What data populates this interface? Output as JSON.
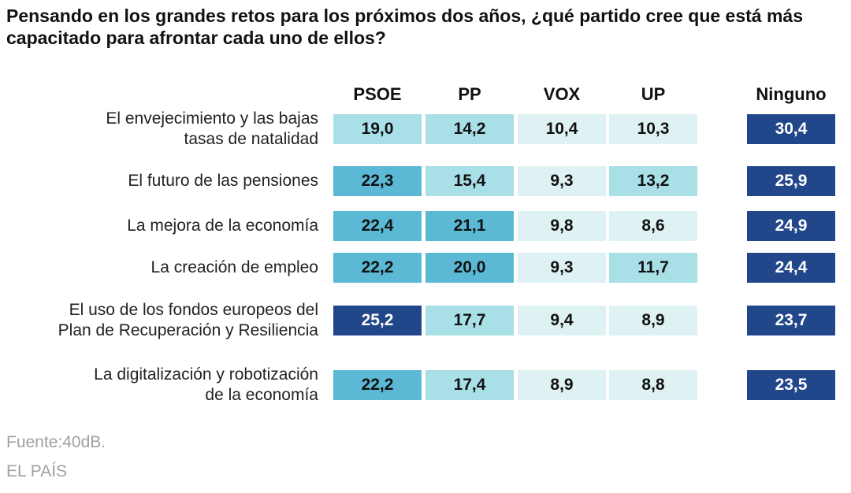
{
  "chart_data": {
    "type": "table",
    "title": "Pensando en los grandes retos para los próximos dos años, ¿qué partido cree que está más capacitado para afrontar cada uno de ellos?",
    "columns": [
      "PSOE",
      "PP",
      "VOX",
      "UP",
      "Ninguno"
    ],
    "rows": [
      {
        "label_lines": [
          "El envejecimiento y las bajas",
          "tasas de natalidad"
        ],
        "values": [
          "19,0",
          "14,2",
          "10,4",
          "10,3",
          "30,4"
        ]
      },
      {
        "label_lines": [
          "El futuro de las pensiones"
        ],
        "values": [
          "22,3",
          "15,4",
          "9,3",
          "13,2",
          "25,9"
        ]
      },
      {
        "label_lines": [
          "La mejora de la economía"
        ],
        "values": [
          "22,4",
          "21,1",
          "9,8",
          "8,6",
          "24,9"
        ]
      },
      {
        "label_lines": [
          "La creación de empleo"
        ],
        "values": [
          "22,2",
          "20,0",
          "9,3",
          "11,7",
          "24,4"
        ]
      },
      {
        "label_lines": [
          "El uso de los fondos europeos del",
          "Plan de Recuperación y Resiliencia"
        ],
        "values": [
          "25,2",
          "17,7",
          "9,4",
          "8,9",
          "23,7"
        ]
      },
      {
        "label_lines": [
          "La digitalización y robotización",
          "de la economía"
        ],
        "values": [
          "22,2",
          "17,4",
          "8,9",
          "8,8",
          "23,5"
        ]
      }
    ],
    "colors": {
      "very_light": "#dff2f3",
      "light": "#a9dfe6",
      "medium": "#5bb9d6",
      "dark": "#21478a",
      "text_dark": "#111111",
      "text_light": "#ffffff"
    }
  },
  "footer": {
    "source": "Fuente:40dB.",
    "brand": "EL PAÍS"
  }
}
